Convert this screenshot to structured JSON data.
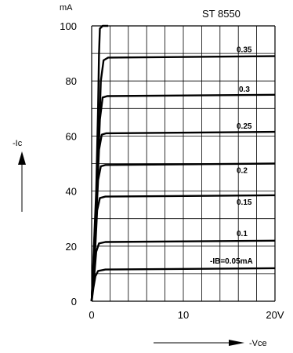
{
  "chart_data": {
    "type": "line",
    "title": "ST 8550",
    "y_unit": "mA",
    "ylabel": "-Ic",
    "xlabel": "-Vce",
    "xlim": [
      0,
      20
    ],
    "ylim": [
      0,
      100
    ],
    "x_ticks": [
      "0",
      "10",
      "20V"
    ],
    "y_ticks": [
      "0",
      "20",
      "40",
      "60",
      "80",
      "100"
    ],
    "grid": true,
    "series": [
      {
        "name": "-IB=0.05mA",
        "points": [
          [
            0,
            0
          ],
          [
            0.2,
            5
          ],
          [
            0.4,
            9
          ],
          [
            0.7,
            11
          ],
          [
            1.5,
            11.5
          ],
          [
            20,
            12
          ]
        ]
      },
      {
        "name": "0.1",
        "points": [
          [
            0,
            0
          ],
          [
            0.3,
            10
          ],
          [
            0.5,
            18
          ],
          [
            0.8,
            21
          ],
          [
            1.5,
            21.5
          ],
          [
            20,
            22
          ]
        ]
      },
      {
        "name": "0.15",
        "points": [
          [
            0,
            0
          ],
          [
            0.4,
            20
          ],
          [
            0.6,
            33
          ],
          [
            0.9,
            37.5
          ],
          [
            1.5,
            38
          ],
          [
            20,
            38.5
          ]
        ]
      },
      {
        "name": "0.2",
        "points": [
          [
            0,
            0
          ],
          [
            0.5,
            30
          ],
          [
            0.7,
            44
          ],
          [
            1.0,
            49
          ],
          [
            1.5,
            49.5
          ],
          [
            20,
            50
          ]
        ]
      },
      {
        "name": "0.25",
        "points": [
          [
            0,
            0
          ],
          [
            0.6,
            40
          ],
          [
            0.8,
            55
          ],
          [
            1.1,
            60.5
          ],
          [
            1.6,
            61
          ],
          [
            20,
            61.5
          ]
        ]
      },
      {
        "name": "0.3",
        "points": [
          [
            0,
            0
          ],
          [
            0.7,
            50
          ],
          [
            0.9,
            66
          ],
          [
            1.2,
            74
          ],
          [
            1.7,
            74.5
          ],
          [
            20,
            75
          ]
        ]
      },
      {
        "name": "0.35",
        "points": [
          [
            0,
            0
          ],
          [
            0.8,
            60
          ],
          [
            1.0,
            80
          ],
          [
            1.3,
            87.5
          ],
          [
            1.8,
            88.5
          ],
          [
            20,
            89
          ]
        ]
      }
    ],
    "boundary_curve": [
      [
        0,
        0
      ],
      [
        0.5,
        40
      ],
      [
        0.7,
        70
      ],
      [
        0.8,
        90
      ],
      [
        0.9,
        99
      ],
      [
        1.2,
        100
      ],
      [
        1.8,
        100
      ]
    ]
  }
}
